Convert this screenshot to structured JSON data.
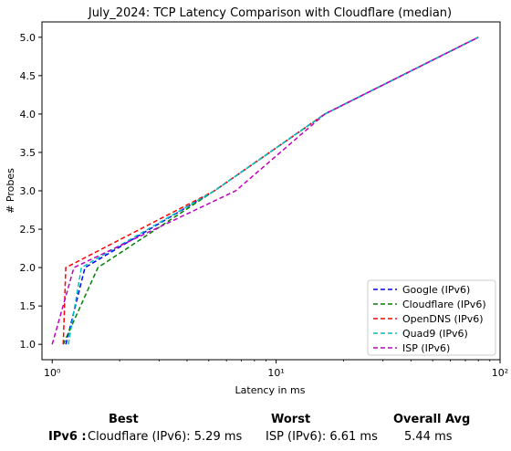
{
  "chart_data": {
    "type": "line",
    "title": "July_2024: TCP Latency Comparison with Cloudflare (median)",
    "xlabel": "Latency in ms",
    "ylabel": "# Probes",
    "xscale": "log",
    "xlim": [
      0.9,
      100
    ],
    "ylim": [
      0.8,
      5.2
    ],
    "x_major_ticks": [
      1,
      10,
      100
    ],
    "x_tick_labels": [
      "10⁰",
      "10¹",
      "10²"
    ],
    "y_ticks": [
      1.0,
      1.5,
      2.0,
      2.5,
      3.0,
      3.5,
      4.0,
      4.5,
      5.0
    ],
    "y_tick_labels": [
      "1.0",
      "1.5",
      "2.0",
      "2.5",
      "3.0",
      "3.5",
      "4.0",
      "4.5",
      "5.0"
    ],
    "grid": false,
    "legend_position": "lower-right",
    "line_style": "dashed",
    "series": [
      {
        "name": "Google (IPv6)",
        "color": "#0000ff",
        "x": [
          1.15,
          1.4,
          5.3,
          16.5,
          80
        ],
        "y": [
          1,
          2,
          3,
          4,
          5
        ]
      },
      {
        "name": "Cloudflare (IPv6)",
        "color": "#008000",
        "x": [
          1.12,
          1.6,
          5.3,
          16.5,
          80
        ],
        "y": [
          1,
          2,
          3,
          4,
          5
        ]
      },
      {
        "name": "OpenDNS (IPv6)",
        "color": "#ff0000",
        "x": [
          1.12,
          1.15,
          5.3,
          16.5,
          80
        ],
        "y": [
          1,
          2,
          3,
          4,
          5
        ]
      },
      {
        "name": "Quad9 (IPv6)",
        "color": "#00bfbf",
        "x": [
          1.18,
          1.35,
          5.3,
          16.5,
          80
        ],
        "y": [
          1,
          2,
          3,
          4,
          5
        ]
      },
      {
        "name": "ISP (IPv6)",
        "color": "#bf00bf",
        "x": [
          1.0,
          1.25,
          6.6,
          16.5,
          80
        ],
        "y": [
          1,
          2,
          3,
          4,
          5
        ]
      }
    ]
  },
  "summary": {
    "best_header": "Best",
    "worst_header": "Worst",
    "avg_header": "Overall Avg",
    "row_label": "IPv6 :",
    "best_value": "Cloudflare (IPv6): 5.29 ms",
    "worst_value": "ISP (IPv6): 6.61 ms",
    "avg_value": "5.44 ms"
  }
}
